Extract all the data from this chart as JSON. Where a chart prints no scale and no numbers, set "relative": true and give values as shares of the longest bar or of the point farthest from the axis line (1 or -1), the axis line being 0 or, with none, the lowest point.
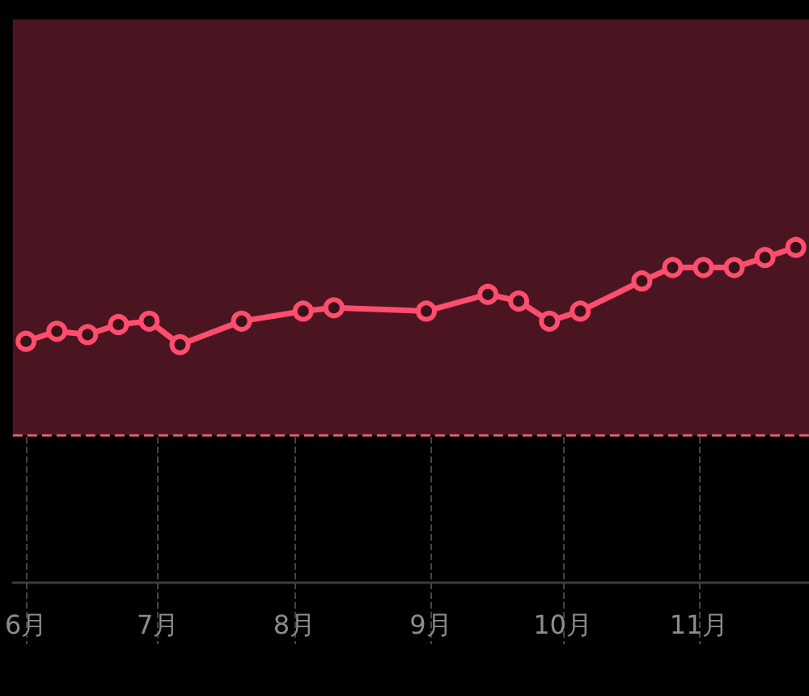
{
  "chart_data": {
    "type": "line",
    "relative": true,
    "x": [
      "--06-01",
      "--06-08",
      "--06-15",
      "--06-22",
      "--06-29",
      "--07-06",
      "--07-20",
      "--08-03",
      "--08-10",
      "--08-31",
      "--09-14",
      "--09-21",
      "--09-28",
      "--10-05",
      "--10-19",
      "--10-26",
      "--11-02",
      "--11-09",
      "--11-16",
      "--11-23"
    ],
    "series": [
      {
        "color": "#ff4d6d",
        "values": [
          0.72,
          0.75,
          0.74,
          0.77,
          0.78,
          0.71,
          0.78,
          0.81,
          0.82,
          0.81,
          0.86,
          0.84,
          0.78,
          0.81,
          0.9,
          0.94,
          0.94,
          0.94,
          0.97,
          1
        ]
      }
    ],
    "xlim": [
      "--05-29",
      "--11-26"
    ],
    "xticks": [
      {
        "value": "--06-01",
        "label": "6月"
      },
      {
        "value": "--07-01",
        "label": "7月"
      },
      {
        "value": "--08-01",
        "label": "8月"
      },
      {
        "value": "--09-01",
        "label": "9月"
      },
      {
        "value": "--10-01",
        "label": "10月"
      },
      {
        "value": "--11-01",
        "label": "11月"
      }
    ],
    "bands": [
      {
        "axis": "y",
        "from": 0.44,
        "to": 1.68,
        "color": "#4a1520"
      }
    ],
    "ref_lines": [
      {
        "axis": "y",
        "value": 0.44,
        "color": "#e0607a",
        "line_style": "dashed"
      }
    ],
    "grid": "x",
    "marker": "circle",
    "line_style": "solid"
  }
}
